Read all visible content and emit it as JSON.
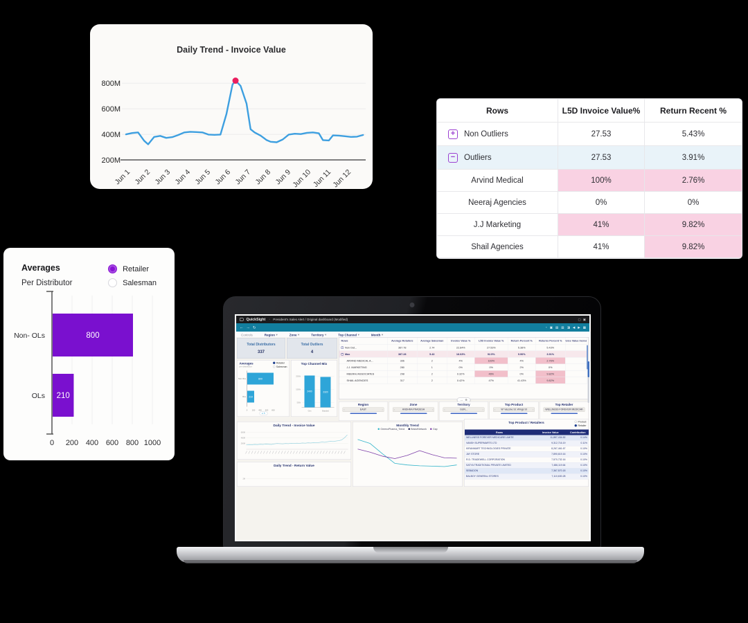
{
  "colors": {
    "accent_purple": "#8a12d4",
    "bar_purple": "#7a10cf",
    "line_blue": "#3d9fe0",
    "peak_pink": "#ea1e5e",
    "cell_pink": "#f9d2e3",
    "row_blue": "#e9f3f9",
    "teal_bar": "#2ea5d8",
    "navy": "#1e2c77",
    "qs_teal": "#127e9e"
  },
  "daily_trend_card": {
    "title": "Daily Trend - Invoice Value",
    "chart_data": {
      "type": "line",
      "x_labels": [
        "Jun 1",
        "Jun 2",
        "Jun 3",
        "Jun 4",
        "Jun 5",
        "Jun 6",
        "Jun 7",
        "Jun 8",
        "Jun 9",
        "Jun 10",
        "Jun 11",
        "Jun 12"
      ],
      "y_ticks": [
        {
          "label": "800M",
          "value": 800
        },
        {
          "label": "600M",
          "value": 600
        },
        {
          "label": "400M",
          "value": 400
        },
        {
          "label": "200M",
          "value": 200
        }
      ],
      "ylim": [
        200,
        850
      ],
      "points": [
        [
          0,
          400
        ],
        [
          0.3,
          410
        ],
        [
          0.6,
          415
        ],
        [
          0.9,
          350
        ],
        [
          1.1,
          322
        ],
        [
          1.4,
          380
        ],
        [
          1.7,
          388
        ],
        [
          2.0,
          372
        ],
        [
          2.3,
          378
        ],
        [
          2.6,
          395
        ],
        [
          2.9,
          415
        ],
        [
          3.2,
          420
        ],
        [
          3.5,
          418
        ],
        [
          3.8,
          415
        ],
        [
          4.1,
          398
        ],
        [
          4.4,
          396
        ],
        [
          4.7,
          398
        ],
        [
          5.0,
          560
        ],
        [
          5.3,
          790
        ],
        [
          5.45,
          820
        ],
        [
          5.7,
          780
        ],
        [
          6.0,
          640
        ],
        [
          6.2,
          440
        ],
        [
          6.4,
          415
        ],
        [
          6.7,
          390
        ],
        [
          7.0,
          355
        ],
        [
          7.2,
          342
        ],
        [
          7.5,
          338
        ],
        [
          7.8,
          360
        ],
        [
          8.1,
          398
        ],
        [
          8.4,
          405
        ],
        [
          8.7,
          402
        ],
        [
          9.0,
          412
        ],
        [
          9.3,
          415
        ],
        [
          9.6,
          408
        ],
        [
          9.8,
          355
        ],
        [
          10.1,
          352
        ],
        [
          10.3,
          392
        ],
        [
          10.6,
          390
        ],
        [
          10.9,
          385
        ],
        [
          11.2,
          380
        ],
        [
          11.5,
          382
        ],
        [
          11.8,
          395
        ]
      ],
      "peak": {
        "x_label": "Jun 6",
        "value": 820
      }
    }
  },
  "outlier_table": {
    "headers": [
      "Rows",
      "L5D Invoice Value%",
      "Return Recent %"
    ],
    "rows": [
      {
        "label": "Non Outliers",
        "toggle": "+",
        "indent": false,
        "row_bg": "white",
        "cells": [
          {
            "text": "27.53",
            "pink": false
          },
          {
            "text": "5.43%",
            "pink": false
          }
        ]
      },
      {
        "label": "Outliers",
        "toggle": "−",
        "indent": false,
        "row_bg": "blue",
        "cells": [
          {
            "text": "27.53",
            "pink": false
          },
          {
            "text": "3.91%",
            "pink": false
          }
        ]
      },
      {
        "label": "Arvind Medical",
        "toggle": null,
        "indent": true,
        "row_bg": "white",
        "cells": [
          {
            "text": "100%",
            "pink": true
          },
          {
            "text": "2.76%",
            "pink": true
          }
        ]
      },
      {
        "label": "Neeraj Agencies",
        "toggle": null,
        "indent": true,
        "row_bg": "white",
        "cells": [
          {
            "text": "0%",
            "pink": false
          },
          {
            "text": "0%",
            "pink": false
          }
        ]
      },
      {
        "label": "J.J Marketing",
        "toggle": null,
        "indent": true,
        "row_bg": "white",
        "cells": [
          {
            "text": "41%",
            "pink": true
          },
          {
            "text": "9.82%",
            "pink": true
          }
        ]
      },
      {
        "label": "Shail Agencies",
        "toggle": null,
        "indent": true,
        "row_bg": "white",
        "cells": [
          {
            "text": "41%",
            "pink": false
          },
          {
            "text": "9.82%",
            "pink": true
          }
        ]
      }
    ]
  },
  "averages_card": {
    "title": "Averages",
    "subtitle": "Per Distributor",
    "radios": [
      {
        "label": "Retailer",
        "selected": true
      },
      {
        "label": "Salesman",
        "selected": false
      }
    ],
    "chart_data": {
      "type": "bar",
      "orientation": "horizontal",
      "categories": [
        "Non- OLs",
        "OLs"
      ],
      "values": [
        800,
        210
      ],
      "bar_labels": [
        "800",
        "210"
      ],
      "xlim": [
        0,
        1000
      ],
      "x_ticks": [
        0,
        200,
        400,
        600,
        800,
        1000
      ]
    }
  },
  "laptop": {
    "titlebar": {
      "app": "QuickSight",
      "path": "President's Sales Alert / Original dashboard (Modified)",
      "right_icons": [
        "square",
        "close"
      ]
    },
    "toolbar": {
      "left_icons": [
        "back",
        "forward",
        "refresh"
      ],
      "right_icons": [
        "clock",
        "bookmark",
        "layout",
        "print",
        "share",
        "prev",
        "next",
        "export"
      ]
    },
    "filters": {
      "controls_label": "Controls",
      "items": [
        "Region",
        "Zone",
        "Territory",
        "Top Channel",
        "Month"
      ]
    },
    "kpis": [
      {
        "label": "Total Distributors",
        "value": "337"
      },
      {
        "label": "Total Outliers",
        "value": "4"
      }
    ],
    "grid_table": {
      "headers": [
        "Rows",
        "Average Retailers",
        "Average Salesman",
        "Invoice Value %",
        "L5D Invoice Value %",
        "Return Percent %",
        "Returns Percent %",
        "Invoice Value Increase"
      ],
      "rows": [
        {
          "label": "Non Out...",
          "toggle": "+",
          "level": 0,
          "hl": false,
          "cells": [
            "367.78",
            "2.74",
            "22.84%",
            "27.53%",
            "5.38%",
            "5.43%",
            ""
          ],
          "pink": []
        },
        {
          "label": "Max",
          "toggle": "−",
          "level": 0,
          "hl": true,
          "cells": [
            "367.28",
            "5.43",
            "16.03%",
            "92.5%",
            "9.90%",
            "3.91%",
            ""
          ],
          "pink": []
        },
        {
          "label": "ARVIND MEDICAL A...",
          "toggle": null,
          "level": 1,
          "hl": false,
          "cells": [
            "306",
            "2",
            "4%",
            "100%",
            "4%",
            "2.76%",
            ""
          ],
          "pink": [
            3,
            5
          ]
        },
        {
          "label": "J.J. MARKETING",
          "toggle": null,
          "level": 1,
          "hl": false,
          "cells": [
            "280",
            "1",
            "0%",
            "0%",
            "2%",
            "0%",
            ""
          ],
          "pink": []
        },
        {
          "label": "MEERAJ ASSOCIATES",
          "toggle": null,
          "level": 1,
          "hl": false,
          "cells": [
            "298",
            "2",
            "0.32%",
            "46%",
            "0%",
            "9.82%",
            ""
          ],
          "pink": [
            3,
            5
          ]
        },
        {
          "label": "SHAIL AGENCIES",
          "toggle": null,
          "level": 1,
          "hl": false,
          "cells": [
            "317",
            "2",
            "0.42%",
            "47%",
            "41.43%",
            "9.82%",
            ""
          ],
          "pink": [
            5
          ]
        }
      ],
      "pill_icons": [
        "expand",
        "plus"
      ]
    },
    "mini_averages": {
      "title": "Averages",
      "subtitle": "per distributor",
      "radios": [
        {
          "label": "Retailer",
          "selected": true
        },
        {
          "label": "Salesman",
          "selected": false
        }
      ],
      "chart_data": {
        "type": "bar",
        "orientation": "horizontal",
        "categories": [
          "Non OLs",
          "OLs"
        ],
        "values": [
          800,
          210
        ],
        "bar_labels": [
          "800",
          "210"
        ],
        "x_ticks": [
          "0",
          "200",
          "400",
          "600",
          "800"
        ]
      }
    },
    "top_channel": {
      "title": "Top Channel Mix",
      "chart_data": {
        "type": "bar",
        "categories": [
          "Gen",
          "Branded"
        ],
        "values": [
          2400,
          2320
        ],
        "bar_labels": [
          "2400",
          "2320"
        ],
        "y_ticks": [
          "2500k",
          "1500k",
          "500k"
        ]
      }
    },
    "band": [
      {
        "title": "Region",
        "value": "EAST"
      },
      {
        "title": "Zone",
        "value": "ANDHRA PRADESH"
      },
      {
        "title": "Territory",
        "value": "GUN..."
      },
      {
        "title": "Top Product",
        "value": "W' Vaccine St. Wings St"
      },
      {
        "title": "Top Retailer",
        "value": "WELLNESS FOREVER MEDICARE LIMITED (..."
      }
    ],
    "daily_invoice": {
      "title": "Daily Trend - Invoice Value",
      "y_ticks": [
        "600M",
        "400M",
        "200M"
      ],
      "values": [
        22,
        24,
        23,
        25,
        24,
        26,
        25,
        27,
        26,
        25,
        28,
        30,
        29,
        28,
        30,
        29,
        31,
        30,
        32,
        31,
        33,
        32,
        34,
        33,
        35,
        34,
        36,
        38,
        37,
        40,
        42,
        41,
        44,
        46,
        50,
        62,
        78
      ]
    },
    "daily_return": {
      "title": "Daily Trend - Return Value",
      "y_tick": "2M"
    },
    "monthly_trend": {
      "title": "Monthly Trend",
      "legend": [
        {
          "label": "GreenoPharma_Trend",
          "color": "#2fb3c9"
        },
        {
          "label": "BestofNetwork",
          "color": "#16194d"
        },
        {
          "label": "Gap",
          "color": "#7d3fa8"
        }
      ],
      "chart_data": {
        "type": "line",
        "series": [
          {
            "name": "GreenoPharma_Trend",
            "color": "#2fb3c9",
            "values": [
              88,
              78,
              52,
              28,
              24,
              22,
              21,
              20,
              24
            ]
          },
          {
            "name": "Gap",
            "color": "#7d3fa8",
            "values": [
              64,
              56,
              46,
              40,
              48,
              60,
              50,
              42,
              41
            ]
          }
        ]
      }
    },
    "top_product": {
      "title": "Top Product / Retailers",
      "radios": [
        {
          "label": "Product",
          "selected": false
        },
        {
          "label": "Retailer",
          "selected": true
        }
      ],
      "headers": [
        "Rows",
        "Invoice Value",
        "Contribution"
      ],
      "rows": [
        {
          "name": "WELLNESS FOREVER MEDICARE LIMITE",
          "value": "11,857,434.52",
          "pct": "0.14%",
          "hl": true
        },
        {
          "name": "VANSH SUPERMARTS LTD",
          "value": "9,312,716.19",
          "pct": "0.11%",
          "hl": false
        },
        {
          "name": "KIRANMART TECHNOLOGIES PRIVATE",
          "value": "8,267,461.67",
          "pct": "0.10%",
          "hl": false
        },
        {
          "name": "JAY STORE",
          "value": "7,890,619.16",
          "pct": "0.10%",
          "hl": false
        },
        {
          "name": "R.D. TRADEWELL CORPORATION",
          "value": "7,570,732.16",
          "pct": "0.10%",
          "hl": false
        },
        {
          "name": "SATYA TRADITIONAL PRIVATE LIMITED",
          "value": "7,486,119.64",
          "pct": "0.10%",
          "hl": false
        },
        {
          "name": "SEBADON",
          "value": "7,367,570.18",
          "pct": "0.10%",
          "hl": true
        },
        {
          "name": "BALBOY GENERAL STORES",
          "value": "7,110,630.28",
          "pct": "0.10%",
          "hl": false
        }
      ]
    }
  }
}
